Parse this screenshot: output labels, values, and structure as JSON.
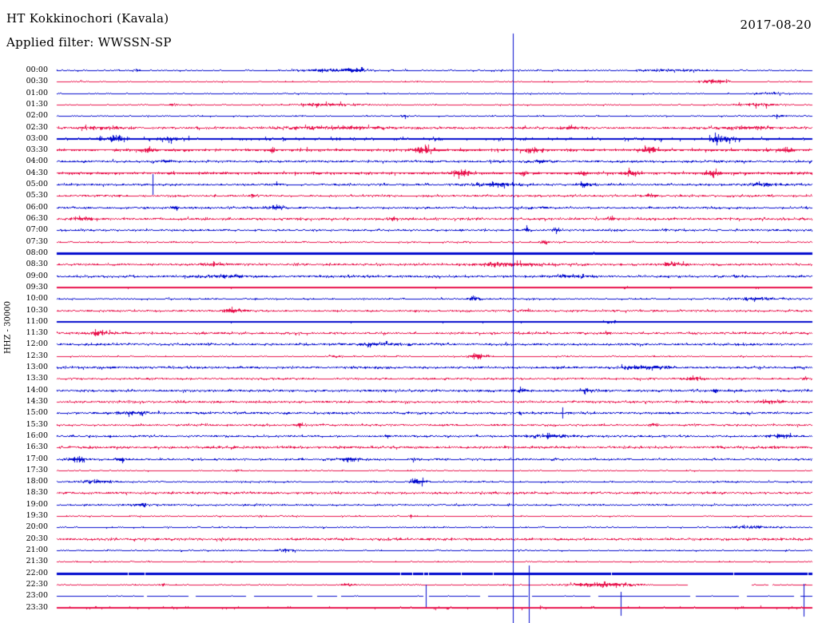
{
  "header": {
    "station_title": "HT Kokkinochori (Kavala)",
    "date": "2017-08-20",
    "filter_label": "Applied filter: WWSSN-SP"
  },
  "axis": {
    "channel_label": "HHZ - 30000"
  },
  "colors": {
    "blue": "#0008CD",
    "red": "#E8114B",
    "text": "#000000",
    "background": "#FFFFFF"
  },
  "chart_data": {
    "type": "line",
    "subtype": "helicorder-daily-seismogram",
    "title": "HT Kokkinochori (Kavala)",
    "date": "2017-08-20",
    "filter": "WWSSN-SP",
    "channel": "HHZ",
    "scale": 30000,
    "minutes_per_row": 30,
    "x_range_minutes": [
      0,
      30
    ],
    "legend": "alternating blue/red traces per 30-minute row",
    "markers": [
      {
        "x_frac": 0.604,
        "kind": "full-height-vertical-line",
        "color": "blue"
      }
    ],
    "rows": [
      {
        "t": "00:00",
        "c": "blue",
        "n": 0.6,
        "ev": [
          [
            0.36,
            1.6,
            30
          ],
          [
            0.395,
            2.0,
            12
          ],
          [
            0.105,
            1.0,
            5
          ],
          [
            0.82,
            0.8,
            40
          ]
        ]
      },
      {
        "t": "00:30",
        "c": "red",
        "n": 0.5,
        "ev": [
          [
            0.872,
            2.2,
            14
          ]
        ]
      },
      {
        "t": "01:00",
        "c": "blue",
        "n": 0.5,
        "ev": [
          [
            0.945,
            1.0,
            20
          ]
        ]
      },
      {
        "t": "01:30",
        "c": "red",
        "n": 0.55,
        "ev": [
          [
            0.153,
            1.4,
            5
          ],
          [
            0.36,
            1.6,
            40
          ],
          [
            0.93,
            1.4,
            30
          ]
        ]
      },
      {
        "t": "02:00",
        "c": "blue",
        "n": 0.55,
        "ev": [
          [
            0.46,
            0.9,
            4
          ],
          [
            0.955,
            1.0,
            12
          ]
        ]
      },
      {
        "t": "02:30",
        "c": "red",
        "n": 0.95,
        "ev": [
          [
            0.05,
            1.3,
            35
          ],
          [
            0.37,
            1.2,
            70
          ],
          [
            0.682,
            2.2,
            8
          ],
          [
            0.92,
            1.3,
            35
          ]
        ]
      },
      {
        "t": "03:00",
        "c": "blue",
        "n": 1.3,
        "th": 0.8,
        "ev": [
          [
            0.075,
            1.8,
            18
          ],
          [
            0.145,
            1.8,
            14
          ],
          [
            0.878,
            2.2,
            18
          ]
        ]
      },
      {
        "t": "03:30",
        "c": "red",
        "n": 1.25,
        "th": 0.7,
        "ev": [
          [
            0.12,
            2.2,
            5
          ],
          [
            0.285,
            2.2,
            4
          ],
          [
            0.482,
            3.0,
            12
          ],
          [
            0.63,
            1.8,
            14
          ],
          [
            0.785,
            3.0,
            9
          ],
          [
            0.965,
            1.8,
            10
          ]
        ]
      },
      {
        "t": "04:00",
        "c": "blue",
        "n": 0.95,
        "ev": [
          [
            0.147,
            1.8,
            5
          ],
          [
            0.645,
            2.0,
            9
          ]
        ]
      },
      {
        "t": "04:30",
        "c": "red",
        "n": 1.2,
        "th": 0.7,
        "ev": [
          [
            0.535,
            2.6,
            12
          ],
          [
            0.617,
            1.8,
            5
          ],
          [
            0.697,
            2.6,
            6
          ],
          [
            0.762,
            2.2,
            9
          ],
          [
            0.868,
            3.0,
            10
          ]
        ]
      },
      {
        "t": "05:00",
        "c": "blue",
        "n": 0.85,
        "ev": [
          [
            0.29,
            1.3,
            5
          ],
          [
            0.585,
            1.8,
            28
          ],
          [
            0.7,
            2.5,
            9
          ],
          [
            0.94,
            1.3,
            22
          ]
        ],
        "spk": [
          [
            0.127,
            13,
            13
          ]
        ]
      },
      {
        "t": "05:30",
        "c": "red",
        "n": 0.85,
        "ev": [
          [
            0.26,
            1.6,
            5
          ],
          [
            0.787,
            1.8,
            7
          ]
        ]
      },
      {
        "t": "06:00",
        "c": "blue",
        "n": 0.85,
        "ev": [
          [
            0.155,
            1.6,
            4
          ],
          [
            0.29,
            2.0,
            12
          ],
          [
            0.645,
            1.6,
            4
          ]
        ]
      },
      {
        "t": "06:30",
        "c": "red",
        "n": 1.05,
        "ev": [
          [
            0.033,
            2.0,
            12
          ],
          [
            0.445,
            2.0,
            4
          ],
          [
            0.735,
            2.0,
            5
          ]
        ]
      },
      {
        "t": "07:00",
        "c": "blue",
        "n": 0.85,
        "ev": [
          [
            0.623,
            1.8,
            5
          ],
          [
            0.66,
            1.6,
            4
          ]
        ]
      },
      {
        "t": "07:30",
        "c": "red",
        "n": 0.65,
        "ev": [
          [
            0.645,
            1.6,
            5
          ]
        ]
      },
      {
        "t": "08:00",
        "c": "blue",
        "n": 0.55,
        "th": 1.3,
        "ev": [
          [
            0.7,
            1.0,
            15
          ]
        ]
      },
      {
        "t": "08:30",
        "c": "red",
        "n": 0.95,
        "ev": [
          [
            0.21,
            1.3,
            20
          ],
          [
            0.6,
            1.8,
            45
          ],
          [
            0.815,
            1.8,
            15
          ]
        ]
      },
      {
        "t": "09:00",
        "c": "blue",
        "n": 0.95,
        "ev": [
          [
            0.22,
            1.2,
            30
          ],
          [
            0.68,
            1.5,
            22
          ]
        ]
      },
      {
        "t": "09:30",
        "c": "red",
        "n": 0.6,
        "th": 1.2,
        "ev": [
          [
            0.755,
            1.6,
            4
          ]
        ]
      },
      {
        "t": "10:00",
        "c": "blue",
        "n": 0.65,
        "ev": [
          [
            0.552,
            2.2,
            7
          ],
          [
            0.92,
            1.2,
            30
          ]
        ]
      },
      {
        "t": "10:30",
        "c": "red",
        "n": 0.85,
        "ev": [
          [
            0.232,
            2.8,
            11
          ],
          [
            0.623,
            1.6,
            3
          ]
        ]
      },
      {
        "t": "11:00",
        "c": "blue",
        "n": 0.6,
        "th": 1.2,
        "ev": [
          [
            0.73,
            1.0,
            20
          ]
        ]
      },
      {
        "t": "11:30",
        "c": "red",
        "n": 0.95,
        "ev": [
          [
            0.055,
            1.8,
            16
          ],
          [
            0.73,
            1.8,
            5
          ]
        ]
      },
      {
        "t": "12:00",
        "c": "blue",
        "n": 0.95,
        "ev": [
          [
            0.42,
            1.2,
            30
          ]
        ]
      },
      {
        "t": "12:30",
        "c": "red",
        "n": 0.55,
        "ev": [
          [
            0.558,
            2.8,
            13
          ],
          [
            0.37,
            1.0,
            8
          ]
        ]
      },
      {
        "t": "13:00",
        "c": "blue",
        "n": 0.95,
        "ev": [
          [
            0.78,
            1.5,
            30
          ]
        ]
      },
      {
        "t": "13:30",
        "c": "red",
        "n": 0.85,
        "ev": [
          [
            0.845,
            2.0,
            10
          ],
          [
            0.99,
            1.6,
            5
          ]
        ]
      },
      {
        "t": "14:00",
        "c": "blue",
        "n": 1.0,
        "ev": [
          [
            0.617,
            1.8,
            7
          ],
          [
            0.7,
            1.8,
            9
          ],
          [
            0.872,
            1.6,
            4
          ]
        ]
      },
      {
        "t": "14:30",
        "c": "red",
        "n": 0.95,
        "ev": [
          [
            0.945,
            1.8,
            14
          ]
        ]
      },
      {
        "t": "15:00",
        "c": "blue",
        "n": 0.95,
        "ev": [
          [
            0.1,
            1.2,
            20
          ]
        ],
        "spk": [
          [
            0.67,
            7,
            7
          ]
        ]
      },
      {
        "t": "15:30",
        "c": "red",
        "n": 0.85,
        "ev": [
          [
            0.32,
            1.6,
            5
          ],
          [
            0.79,
            1.6,
            5
          ]
        ]
      },
      {
        "t": "16:00",
        "c": "blue",
        "n": 0.85,
        "ev": [
          [
            0.438,
            1.6,
            4
          ],
          [
            0.65,
            1.5,
            28
          ],
          [
            0.96,
            1.6,
            18
          ]
        ]
      },
      {
        "t": "16:30",
        "c": "red",
        "n": 1.05,
        "ev": []
      },
      {
        "t": "17:00",
        "c": "blue",
        "n": 0.85,
        "ev": [
          [
            0.0275,
            3.2,
            9
          ],
          [
            0.085,
            1.8,
            7
          ],
          [
            0.385,
            2.0,
            14
          ],
          [
            0.475,
            1.3,
            4
          ]
        ]
      },
      {
        "t": "17:30",
        "c": "red",
        "n": 0.5,
        "ev": [
          [
            0.24,
            1.0,
            4
          ]
        ]
      },
      {
        "t": "18:00",
        "c": "blue",
        "n": 0.65,
        "ev": [
          [
            0.055,
            1.3,
            22
          ],
          [
            0.478,
            2.8,
            10
          ]
        ]
      },
      {
        "t": "18:30",
        "c": "red",
        "n": 0.95,
        "ev": []
      },
      {
        "t": "19:00",
        "c": "blue",
        "n": 0.75,
        "ev": [
          [
            0.11,
            1.6,
            10
          ]
        ]
      },
      {
        "t": "19:30",
        "c": "red",
        "n": 0.5,
        "ev": [
          [
            0.27,
            1.0,
            4
          ],
          [
            0.47,
            1.2,
            4
          ]
        ]
      },
      {
        "t": "20:00",
        "c": "blue",
        "n": 0.55,
        "ev": [
          [
            0.92,
            1.2,
            35
          ]
        ]
      },
      {
        "t": "20:30",
        "c": "red",
        "n": 1.05,
        "ev": []
      },
      {
        "t": "21:00",
        "c": "blue",
        "n": 0.55,
        "ev": [
          [
            0.305,
            1.6,
            11
          ]
        ]
      },
      {
        "t": "21:30",
        "c": "red",
        "n": 0.5,
        "ev": []
      },
      {
        "t": "22:00",
        "c": "blue",
        "n": 0.3,
        "th": 1.4,
        "notched": true,
        "ev": []
      },
      {
        "t": "22:30",
        "c": "red",
        "n": 0.5,
        "ev": [
          [
            0.14,
            1.3,
            5
          ],
          [
            0.385,
            1.6,
            8
          ],
          [
            0.72,
            2.2,
            40
          ]
        ],
        "gaps": [
          [
            0.835,
            0.92
          ],
          [
            0.942,
            0.948
          ]
        ]
      },
      {
        "t": "23:00",
        "c": "blue",
        "n": 0.35,
        "broken": true,
        "ev": [],
        "spk": [
          [
            0.489,
            14,
            14
          ],
          [
            0.625,
            38,
            34
          ],
          [
            0.747,
            5,
            25
          ],
          [
            0.989,
            15,
            26
          ]
        ]
      },
      {
        "t": "23:30",
        "c": "red",
        "n": 1.1,
        "th": 0.8,
        "ev": []
      }
    ]
  }
}
